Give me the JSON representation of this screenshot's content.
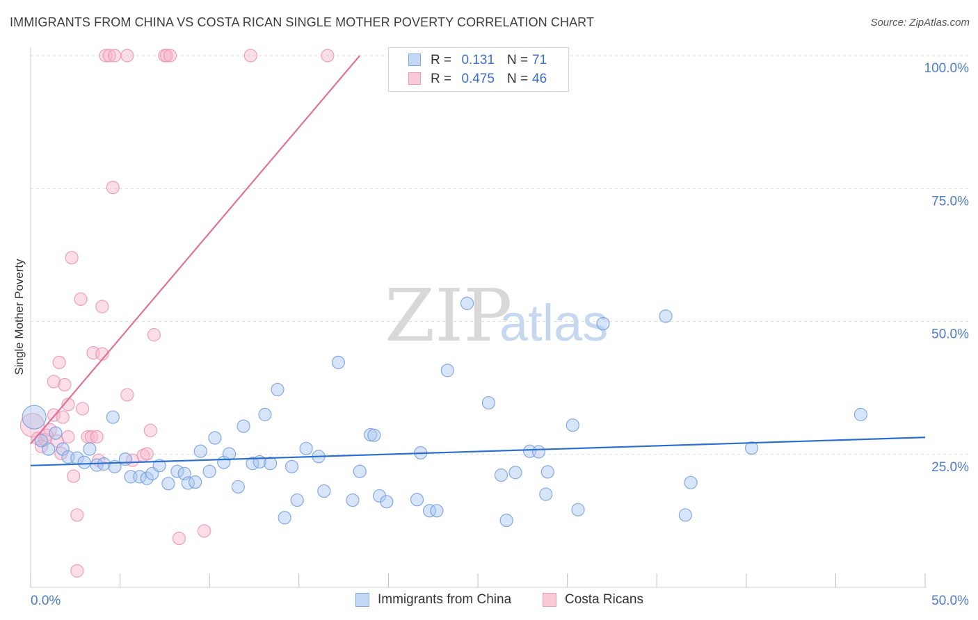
{
  "title": "IMMIGRANTS FROM CHINA VS COSTA RICAN SINGLE MOTHER POVERTY CORRELATION CHART",
  "source": "Source: ZipAtlas.com",
  "watermark": {
    "zip": "ZIP",
    "atlas": "atlas"
  },
  "colors": {
    "blue_fill": "#a9c6f0",
    "blue_stroke": "#6f9ce0",
    "blue_line": "#2a6fcf",
    "pink_fill": "#f6b6cb",
    "pink_stroke": "#ec8fae",
    "pink_line": "#e2709a",
    "tick_label": "#4a7cc9",
    "grid": "#dcdcdc"
  },
  "legend": {
    "rows": [
      {
        "r_label": "R =",
        "r_value": "0.131",
        "n_label": "N =",
        "n_value": "71"
      },
      {
        "r_label": "R =",
        "r_value": "0.475",
        "n_label": "N =",
        "n_value": "46"
      }
    ]
  },
  "bottom_legend": {
    "items": [
      "Immigrants from China",
      "Costa Ricans"
    ]
  },
  "chart_data": {
    "type": "scatter",
    "title": "IMMIGRANTS FROM CHINA VS COSTA RICAN SINGLE MOTHER POVERTY CORRELATION CHART",
    "xlabel": "",
    "ylabel": "Single Mother Poverty",
    "xlim": [
      0,
      50
    ],
    "ylim": [
      0,
      100
    ],
    "x_tick_labels": [
      "0.0%",
      "50.0%"
    ],
    "y_tick_labels": [
      "25.0%",
      "50.0%",
      "75.0%",
      "100.0%"
    ],
    "y_ticks": [
      25,
      50,
      75,
      100
    ],
    "grid": "horizontal dashed",
    "legend_position": "top-center",
    "series": [
      {
        "name": "Immigrants from China",
        "color": "#a9c6f0",
        "r": 0.131,
        "n": 71,
        "trend": {
          "x": [
            0,
            50
          ],
          "y": [
            22.9,
            28.2
          ]
        },
        "points": [
          {
            "x": 0.2,
            "y": 32.0,
            "big": true
          },
          {
            "x": 1.0,
            "y": 26.0
          },
          {
            "x": 1.4,
            "y": 29.0
          },
          {
            "x": 1.8,
            "y": 26.0
          },
          {
            "x": 2.1,
            "y": 24.5
          },
          {
            "x": 2.6,
            "y": 24.3
          },
          {
            "x": 3.0,
            "y": 23.5
          },
          {
            "x": 3.3,
            "y": 26.0
          },
          {
            "x": 3.7,
            "y": 23.0
          },
          {
            "x": 4.1,
            "y": 23.2
          },
          {
            "x": 4.7,
            "y": 22.7
          },
          {
            "x": 4.6,
            "y": 32.0
          },
          {
            "x": 5.3,
            "y": 24.1
          },
          {
            "x": 5.6,
            "y": 20.8
          },
          {
            "x": 6.1,
            "y": 20.8
          },
          {
            "x": 6.5,
            "y": 20.5
          },
          {
            "x": 6.8,
            "y": 21.4
          },
          {
            "x": 7.2,
            "y": 22.9
          },
          {
            "x": 7.7,
            "y": 19.5
          },
          {
            "x": 8.2,
            "y": 21.8
          },
          {
            "x": 8.6,
            "y": 21.4
          },
          {
            "x": 8.8,
            "y": 19.6
          },
          {
            "x": 9.2,
            "y": 19.8
          },
          {
            "x": 9.5,
            "y": 25.6
          },
          {
            "x": 10.0,
            "y": 21.8
          },
          {
            "x": 10.3,
            "y": 28.1
          },
          {
            "x": 10.8,
            "y": 23.5
          },
          {
            "x": 11.1,
            "y": 25.1
          },
          {
            "x": 11.6,
            "y": 18.9
          },
          {
            "x": 11.9,
            "y": 30.3
          },
          {
            "x": 12.4,
            "y": 23.3
          },
          {
            "x": 12.8,
            "y": 23.6
          },
          {
            "x": 13.1,
            "y": 32.5
          },
          {
            "x": 13.4,
            "y": 23.3
          },
          {
            "x": 13.8,
            "y": 37.2
          },
          {
            "x": 14.2,
            "y": 13.1
          },
          {
            "x": 14.6,
            "y": 22.7
          },
          {
            "x": 14.9,
            "y": 16.4
          },
          {
            "x": 15.4,
            "y": 26.1
          },
          {
            "x": 16.1,
            "y": 24.6
          },
          {
            "x": 16.4,
            "y": 18.1
          },
          {
            "x": 17.2,
            "y": 42.3
          },
          {
            "x": 18.0,
            "y": 16.4
          },
          {
            "x": 18.4,
            "y": 21.8
          },
          {
            "x": 19.0,
            "y": 28.7
          },
          {
            "x": 19.2,
            "y": 28.6
          },
          {
            "x": 19.5,
            "y": 17.2
          },
          {
            "x": 19.9,
            "y": 16.1
          },
          {
            "x": 21.6,
            "y": 16.5
          },
          {
            "x": 21.8,
            "y": 25.3
          },
          {
            "x": 22.3,
            "y": 14.4
          },
          {
            "x": 22.7,
            "y": 14.4
          },
          {
            "x": 23.3,
            "y": 40.8
          },
          {
            "x": 24.4,
            "y": 53.4
          },
          {
            "x": 25.6,
            "y": 34.7
          },
          {
            "x": 26.3,
            "y": 21.1
          },
          {
            "x": 26.6,
            "y": 12.6
          },
          {
            "x": 27.1,
            "y": 21.6
          },
          {
            "x": 27.9,
            "y": 25.6
          },
          {
            "x": 28.4,
            "y": 25.5
          },
          {
            "x": 28.9,
            "y": 21.7
          },
          {
            "x": 28.8,
            "y": 17.5
          },
          {
            "x": 30.3,
            "y": 30.5
          },
          {
            "x": 30.6,
            "y": 14.6
          },
          {
            "x": 32.0,
            "y": 49.6
          },
          {
            "x": 35.5,
            "y": 51.0
          },
          {
            "x": 36.6,
            "y": 13.6
          },
          {
            "x": 36.9,
            "y": 19.7
          },
          {
            "x": 40.3,
            "y": 26.2
          },
          {
            "x": 46.4,
            "y": 32.5
          },
          {
            "x": 0.6,
            "y": 27.6
          }
        ]
      },
      {
        "name": "Costa Ricans",
        "color": "#f6b6cb",
        "r": 0.475,
        "n": 46,
        "trend": {
          "x": [
            0,
            18.4
          ],
          "y": [
            27.0,
            100.0
          ]
        },
        "points": [
          {
            "x": 0.1,
            "y": 30.5,
            "big": true
          },
          {
            "x": 0.4,
            "y": 28.0
          },
          {
            "x": 0.6,
            "y": 26.5
          },
          {
            "x": 0.8,
            "y": 27.8
          },
          {
            "x": 1.1,
            "y": 29.6
          },
          {
            "x": 1.3,
            "y": 32.4
          },
          {
            "x": 1.3,
            "y": 38.7
          },
          {
            "x": 1.5,
            "y": 27.5
          },
          {
            "x": 1.6,
            "y": 42.3
          },
          {
            "x": 1.8,
            "y": 32.0
          },
          {
            "x": 1.9,
            "y": 38.1
          },
          {
            "x": 2.1,
            "y": 28.3
          },
          {
            "x": 2.1,
            "y": 34.4
          },
          {
            "x": 2.3,
            "y": 62.0
          },
          {
            "x": 2.4,
            "y": 20.9
          },
          {
            "x": 2.6,
            "y": 13.6
          },
          {
            "x": 2.6,
            "y": 3.1
          },
          {
            "x": 2.8,
            "y": 54.2
          },
          {
            "x": 2.9,
            "y": 33.6
          },
          {
            "x": 3.2,
            "y": 28.3
          },
          {
            "x": 3.4,
            "y": 28.3
          },
          {
            "x": 3.5,
            "y": 44.1
          },
          {
            "x": 3.7,
            "y": 28.3
          },
          {
            "x": 3.8,
            "y": 23.9
          },
          {
            "x": 4.0,
            "y": 43.9
          },
          {
            "x": 4.0,
            "y": 52.8
          },
          {
            "x": 4.6,
            "y": 75.2
          },
          {
            "x": 5.4,
            "y": 36.2
          },
          {
            "x": 5.7,
            "y": 23.9
          },
          {
            "x": 6.3,
            "y": 24.8
          },
          {
            "x": 6.5,
            "y": 25.1
          },
          {
            "x": 6.7,
            "y": 29.5
          },
          {
            "x": 6.9,
            "y": 47.5
          },
          {
            "x": 8.3,
            "y": 9.2
          },
          {
            "x": 9.7,
            "y": 10.6
          },
          {
            "x": 4.2,
            "y": 100
          },
          {
            "x": 4.4,
            "y": 100
          },
          {
            "x": 4.7,
            "y": 100
          },
          {
            "x": 5.4,
            "y": 100
          },
          {
            "x": 7.5,
            "y": 100
          },
          {
            "x": 7.6,
            "y": 100
          },
          {
            "x": 7.8,
            "y": 100
          },
          {
            "x": 12.3,
            "y": 100
          },
          {
            "x": 16.6,
            "y": 100
          },
          {
            "x": 0.9,
            "y": 28.6
          },
          {
            "x": 1.7,
            "y": 25.2
          }
        ]
      }
    ]
  }
}
